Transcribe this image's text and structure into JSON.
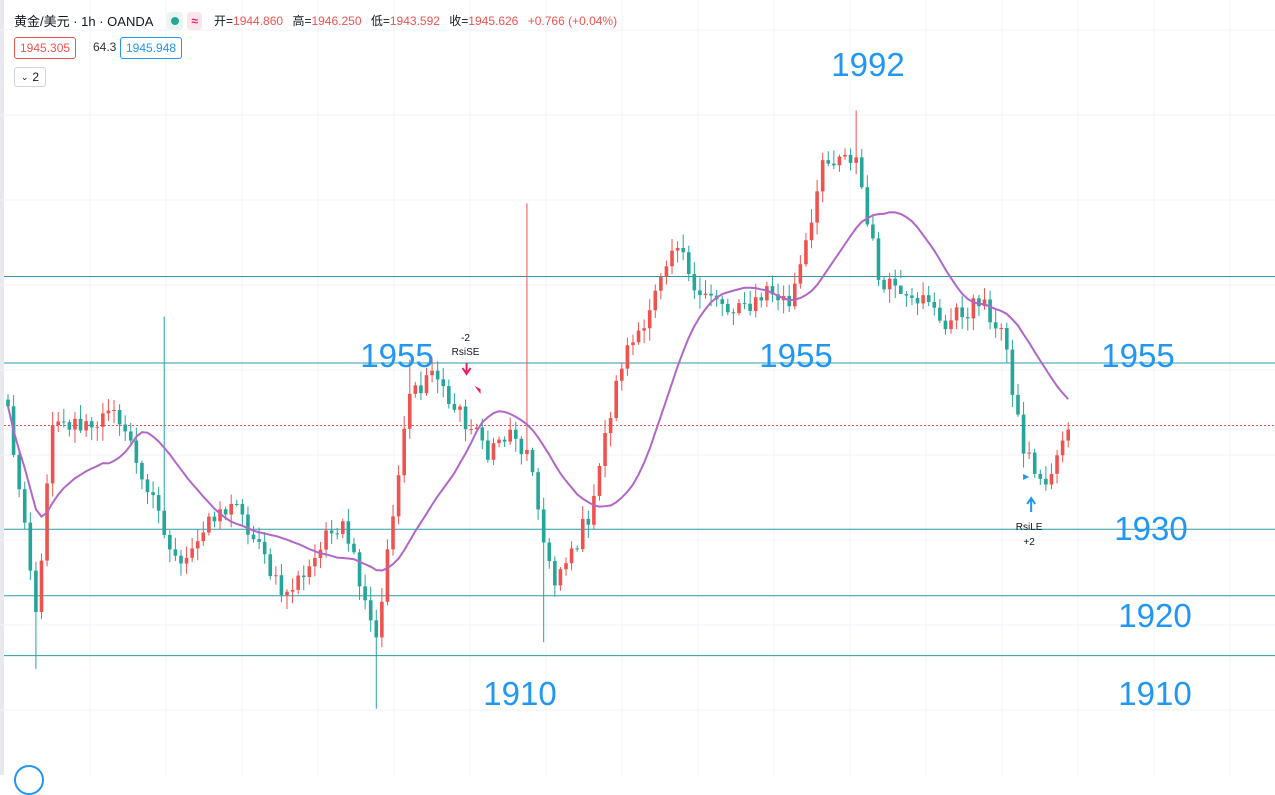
{
  "header": {
    "symbol": "黄金/美元 · 1h · OANDA",
    "status_icon": "green-dot-icon",
    "approx_icon_label": "≈",
    "open_label": "开=",
    "open_value": "1944.860",
    "high_label": "高=",
    "high_value": "1946.250",
    "low_label": "低=",
    "low_value": "1943.592",
    "close_label": "收=",
    "close_value": "1945.626",
    "change": "+0.766 (+0.04%)"
  },
  "price_boxes": {
    "sell": "1945.305",
    "spread": "64.3",
    "buy": "1945.948"
  },
  "indicator_toggle": {
    "count": "2"
  },
  "colors": {
    "up": "#ef5350",
    "down": "#26a69a",
    "ma": "#b266c8",
    "level": "#2e9aa8",
    "annotation": "#2196f3"
  },
  "chart_data": {
    "type": "candlestick",
    "title": "",
    "xlabel": "",
    "ylabel": "",
    "ylim": [
      1903,
      1999
    ],
    "grid": true,
    "current_price": 1945.6,
    "horizontal_levels": [
      1968,
      1955,
      1930,
      1920,
      1911
    ],
    "level_labels": [
      {
        "text": "1992",
        "anchor": "top-peak"
      },
      {
        "text": "1955",
        "anchor": "left"
      },
      {
        "text": "1955",
        "anchor": "center"
      },
      {
        "text": "1955",
        "anchor": "right"
      },
      {
        "text": "1930",
        "anchor": "right"
      },
      {
        "text": "1920",
        "anchor": "right"
      },
      {
        "text": "1910",
        "anchor": "bottom-center"
      },
      {
        "text": "1910",
        "anchor": "right"
      }
    ],
    "signals": [
      {
        "type": "short",
        "label": "RsiSE",
        "qty": "-2"
      },
      {
        "type": "long",
        "label": "RsiLE",
        "qty": "+2"
      }
    ],
    "key_points": [
      {
        "x": 0,
        "close": 1948
      },
      {
        "x": 5,
        "close": 1917
      },
      {
        "x": 8,
        "close": 1945
      },
      {
        "x": 20,
        "close": 1947
      },
      {
        "x": 30,
        "close": 1925
      },
      {
        "x": 40,
        "close": 1934
      },
      {
        "x": 50,
        "close": 1920
      },
      {
        "x": 60,
        "close": 1932
      },
      {
        "x": 66,
        "close": 1914
      },
      {
        "x": 72,
        "close": 1950
      },
      {
        "x": 76,
        "close": 1954
      },
      {
        "x": 80,
        "close": 1948
      },
      {
        "x": 86,
        "close": 1942
      },
      {
        "x": 90,
        "close": 1944
      },
      {
        "x": 93,
        "close": 1941
      },
      {
        "x": 98,
        "close": 1921
      },
      {
        "x": 104,
        "close": 1932
      },
      {
        "x": 110,
        "close": 1955
      },
      {
        "x": 120,
        "close": 1972
      },
      {
        "x": 124,
        "close": 1966
      },
      {
        "x": 130,
        "close": 1962
      },
      {
        "x": 136,
        "close": 1966
      },
      {
        "x": 140,
        "close": 1964
      },
      {
        "x": 146,
        "close": 1984
      },
      {
        "x": 152,
        "close": 1986
      },
      {
        "x": 156,
        "close": 1968
      },
      {
        "x": 162,
        "close": 1966
      },
      {
        "x": 168,
        "close": 1961
      },
      {
        "x": 174,
        "close": 1964
      },
      {
        "x": 178,
        "close": 1960
      },
      {
        "x": 182,
        "close": 1942
      },
      {
        "x": 186,
        "close": 1936
      },
      {
        "x": 190,
        "close": 1945
      }
    ]
  }
}
